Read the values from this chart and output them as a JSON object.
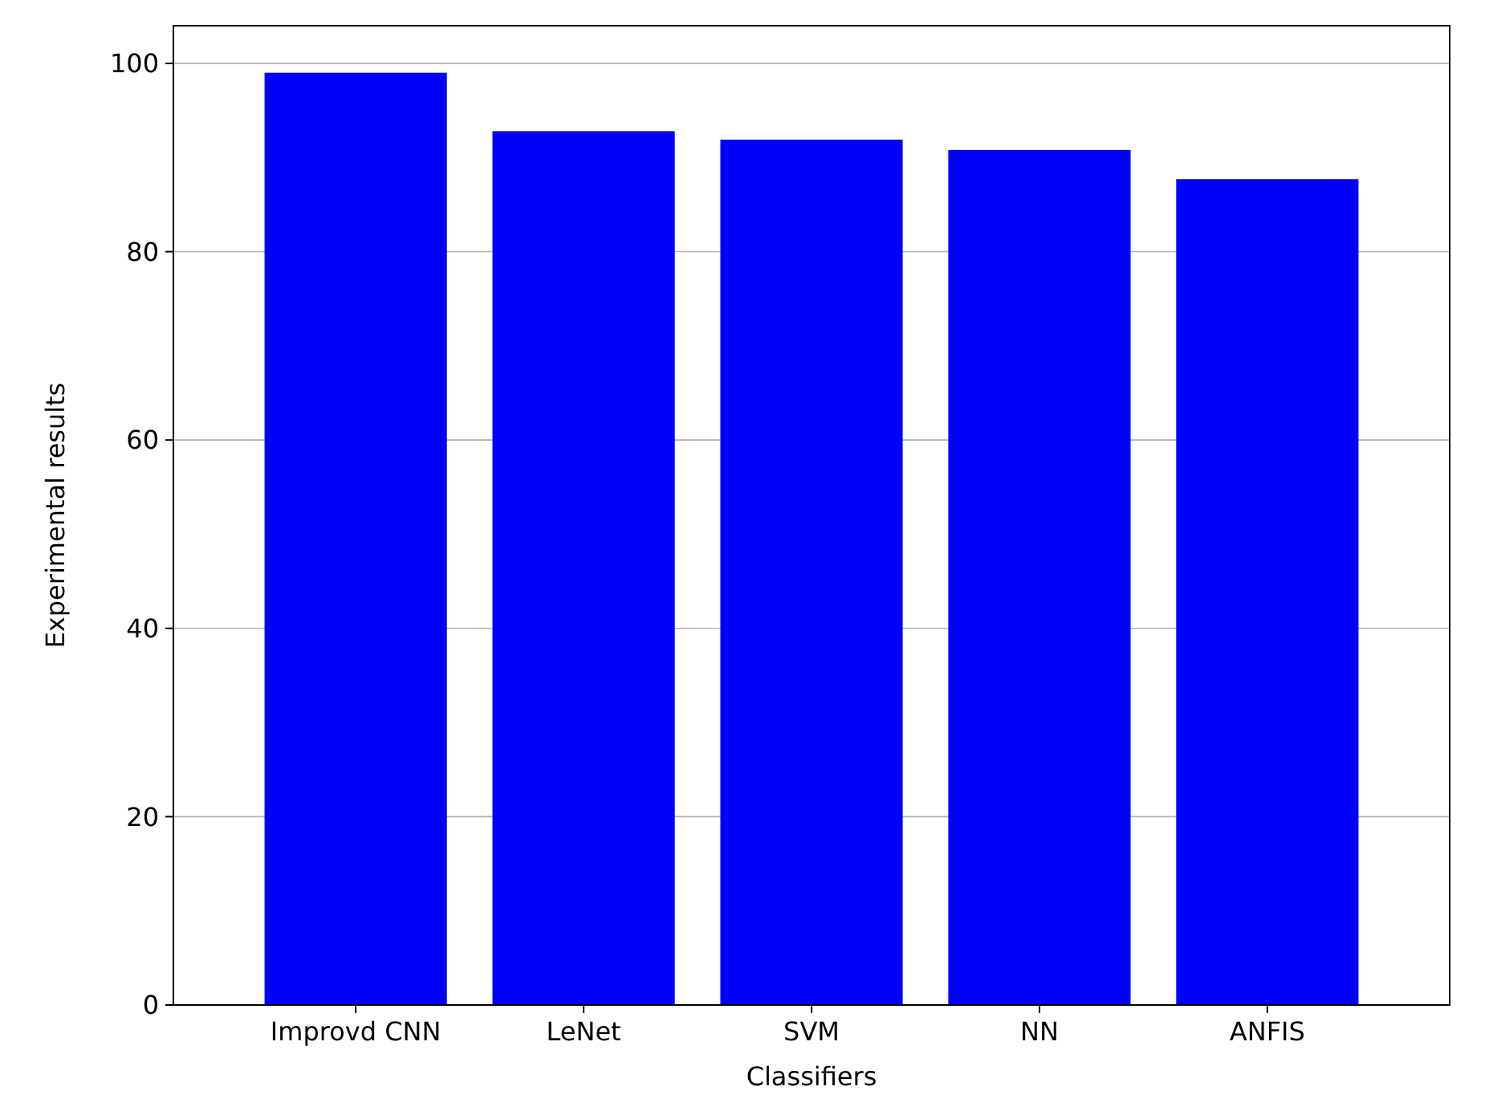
{
  "chart_data": {
    "type": "bar",
    "xlabel": "Classifiers",
    "ylabel": "Experimental results",
    "categories": [
      "Improvd CNN",
      "LeNet",
      "SVM",
      "NN",
      "ANFIS"
    ],
    "values": [
      99,
      92.8,
      91.9,
      90.8,
      87.7
    ],
    "color": "#0000ff",
    "ylim": [
      0,
      104
    ],
    "yticks": [
      0,
      20,
      40,
      60,
      80,
      100
    ],
    "grid": "y"
  }
}
